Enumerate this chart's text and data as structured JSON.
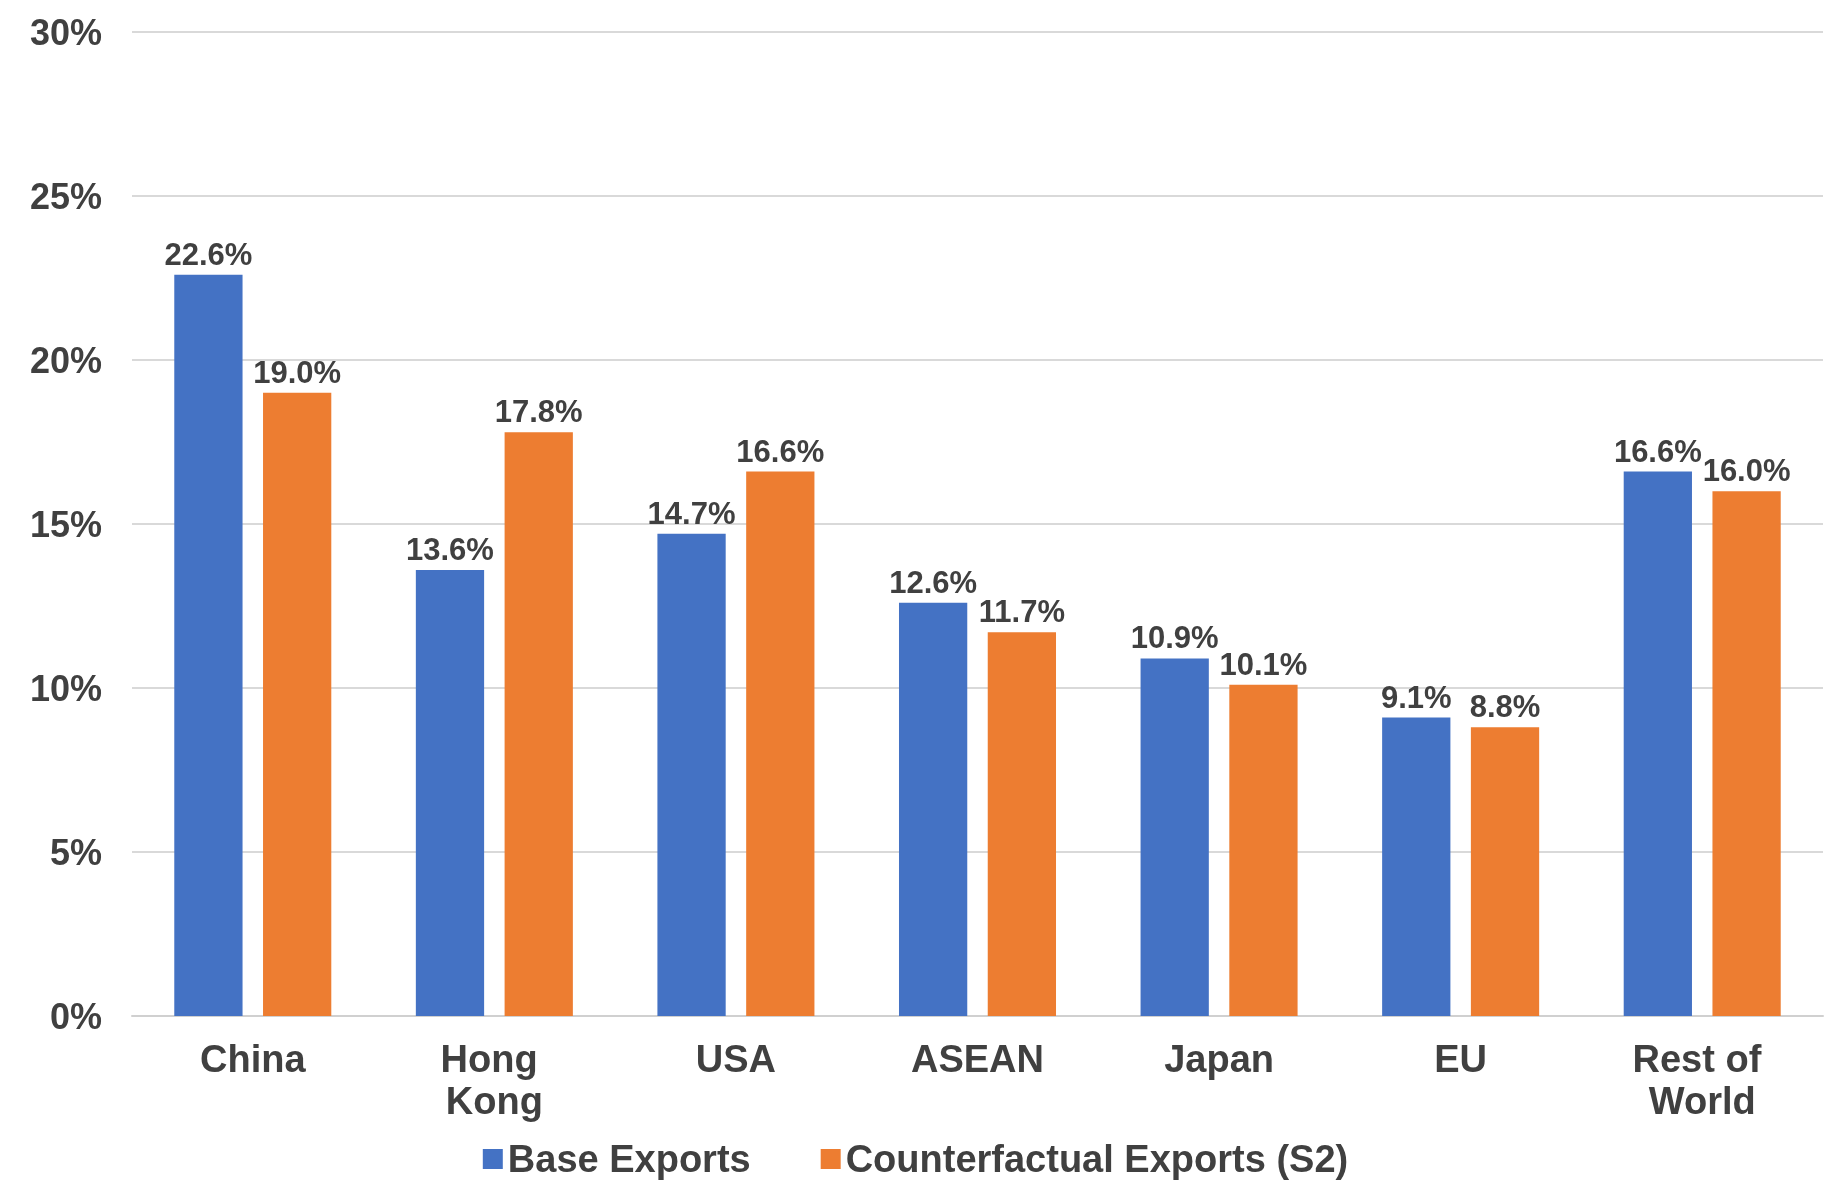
{
  "chart_data": {
    "type": "bar",
    "categories": [
      "China",
      "Hong Kong",
      "USA",
      "ASEAN",
      "Japan",
      "EU",
      "Rest of World"
    ],
    "series": [
      {
        "name": "Base Exports",
        "color": "#4472c4",
        "values": [
          22.6,
          13.6,
          14.7,
          12.6,
          10.9,
          9.1,
          16.6
        ],
        "value_labels": [
          "22.6%",
          "13.6%",
          "14.7%",
          "12.6%",
          "10.9%",
          "9.1%",
          "16.6%"
        ]
      },
      {
        "name": "Counterfactual Exports (S2)",
        "color": "#ed7d31",
        "values": [
          19.0,
          17.8,
          16.6,
          11.7,
          10.1,
          8.8,
          16.0
        ],
        "value_labels": [
          "19.0%",
          "17.8%",
          "16.6%",
          "11.7%",
          "10.1%",
          "8.8%",
          "16.0%"
        ]
      }
    ],
    "ylim": [
      0,
      30
    ],
    "yticks": [
      {
        "value": 0,
        "label": "0%"
      },
      {
        "value": 5,
        "label": "5%"
      },
      {
        "value": 10,
        "label": "10%"
      },
      {
        "value": 15,
        "label": "15%"
      },
      {
        "value": 20,
        "label": "20%"
      },
      {
        "value": 25,
        "label": "25%"
      },
      {
        "value": 30,
        "label": "30%"
      }
    ],
    "grid": "y",
    "legend": "bottom"
  }
}
